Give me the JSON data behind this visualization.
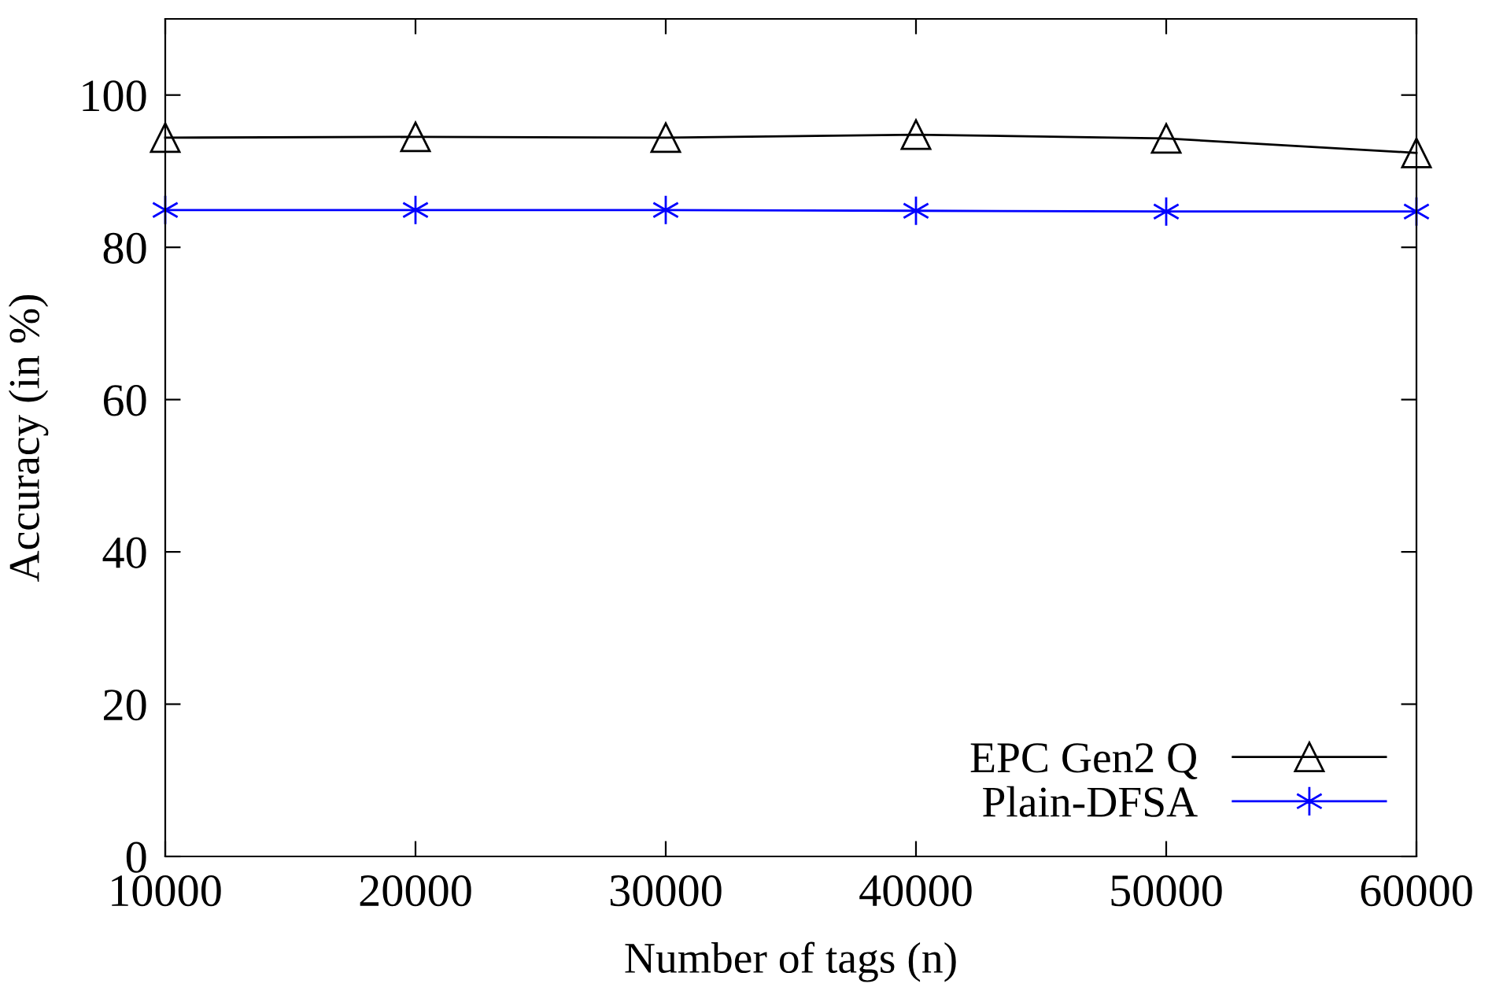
{
  "chart_data": {
    "type": "line",
    "xlabel": "Number of tags (n)",
    "ylabel": "Accuracy (in %)",
    "x": [
      10000,
      20000,
      30000,
      40000,
      50000,
      60000
    ],
    "series": [
      {
        "name": "EPC Gen2 Q",
        "color": "#000000",
        "marker": "triangle",
        "values": [
          94.4,
          94.5,
          94.4,
          94.8,
          94.3,
          92.4
        ]
      },
      {
        "name": "Plain-DFSA",
        "color": "#0000ff",
        "marker": "cross",
        "values": [
          84.9,
          84.9,
          84.9,
          84.8,
          84.7,
          84.7
        ]
      }
    ],
    "xlim": [
      10000,
      60000
    ],
    "ylim": [
      0,
      110
    ],
    "xticks": [
      10000,
      20000,
      30000,
      40000,
      50000,
      60000
    ],
    "yticks": [
      0,
      20,
      40,
      60,
      80,
      100
    ],
    "grid": false,
    "legend": "bottom right",
    "line_style": "solid"
  }
}
